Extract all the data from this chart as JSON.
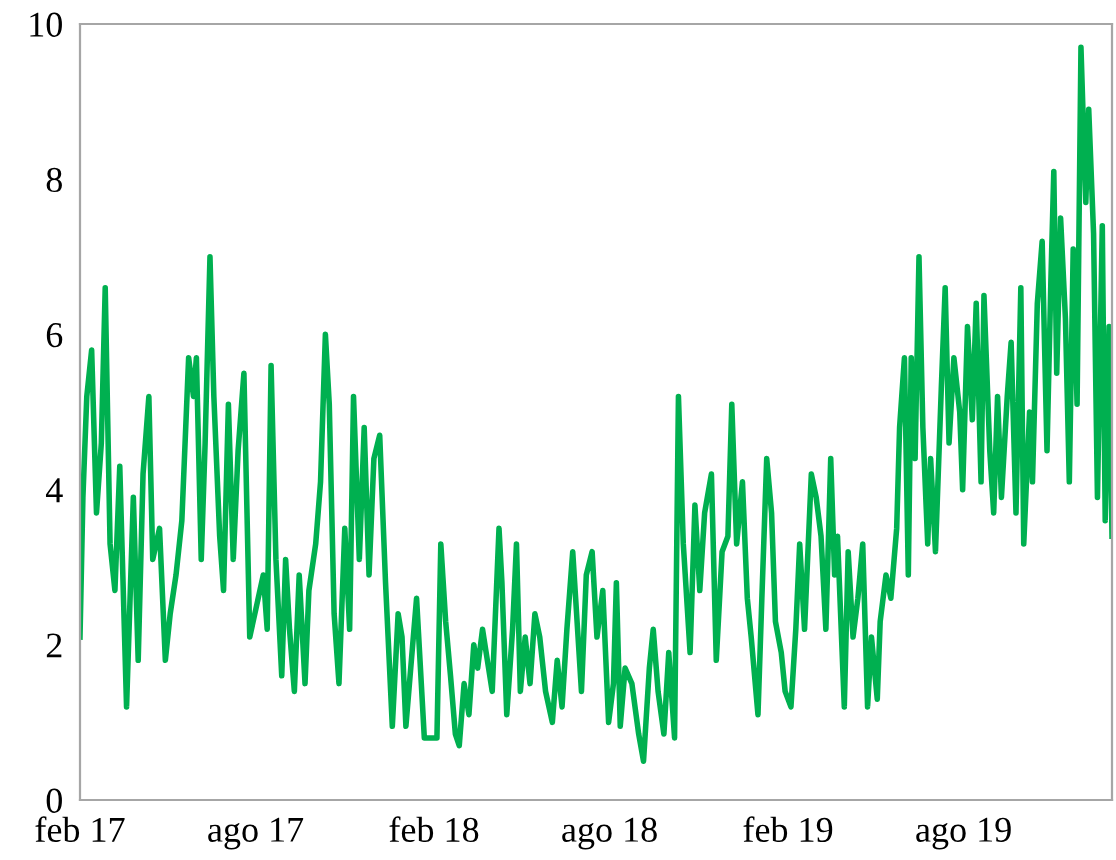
{
  "chart_data": {
    "type": "line",
    "x": [
      "2017-02-01",
      "2017-02-04",
      "2017-02-08",
      "2017-02-13",
      "2017-02-18",
      "2017-02-23",
      "2017-02-27",
      "2017-03-04",
      "2017-03-09",
      "2017-03-14",
      "2017-03-21",
      "2017-03-28",
      "2017-04-02",
      "2017-04-07",
      "2017-04-13",
      "2017-04-17",
      "2017-04-24",
      "2017-04-30",
      "2017-05-05",
      "2017-05-11",
      "2017-05-17",
      "2017-05-24",
      "2017-05-29",
      "2017-06-01",
      "2017-06-06",
      "2017-06-10",
      "2017-06-15",
      "2017-06-19",
      "2017-06-25",
      "2017-06-29",
      "2017-07-04",
      "2017-07-09",
      "2017-07-14",
      "2017-07-20",
      "2017-07-26",
      "2017-08-02",
      "2017-08-09",
      "2017-08-13",
      "2017-08-17",
      "2017-08-22",
      "2017-08-28",
      "2017-09-01",
      "2017-09-05",
      "2017-09-10",
      "2017-09-15",
      "2017-09-21",
      "2017-09-25",
      "2017-10-02",
      "2017-10-07",
      "2017-10-12",
      "2017-10-16",
      "2017-10-21",
      "2017-10-26",
      "2017-11-01",
      "2017-11-06",
      "2017-11-10",
      "2017-11-16",
      "2017-11-21",
      "2017-11-26",
      "2017-12-01",
      "2017-12-07",
      "2017-12-13",
      "2017-12-20",
      "2017-12-26",
      "2017-12-30",
      "2018-01-03",
      "2018-01-08",
      "2018-01-14",
      "2018-01-22",
      "2018-02-04",
      "2018-02-08",
      "2018-02-13",
      "2018-02-18",
      "2018-02-23",
      "2018-02-27",
      "2018-03-04",
      "2018-03-09",
      "2018-03-14",
      "2018-03-18",
      "2018-03-23",
      "2018-03-28",
      "2018-04-02",
      "2018-04-09",
      "2018-04-12",
      "2018-04-17",
      "2018-04-23",
      "2018-04-27",
      "2018-05-01",
      "2018-05-06",
      "2018-05-11",
      "2018-05-16",
      "2018-05-21",
      "2018-05-27",
      "2018-06-03",
      "2018-06-08",
      "2018-06-13",
      "2018-06-18",
      "2018-06-24",
      "2018-07-03",
      "2018-07-08",
      "2018-07-14",
      "2018-07-19",
      "2018-07-25",
      "2018-07-31",
      "2018-08-05",
      "2018-08-08",
      "2018-08-12",
      "2018-08-17",
      "2018-08-24",
      "2018-08-31",
      "2018-09-05",
      "2018-09-11",
      "2018-09-15",
      "2018-09-20",
      "2018-09-26",
      "2018-10-01",
      "2018-10-07",
      "2018-10-11",
      "2018-10-16",
      "2018-10-23",
      "2018-10-28",
      "2018-11-02",
      "2018-11-07",
      "2018-11-14",
      "2018-11-19",
      "2018-11-25",
      "2018-12-01",
      "2018-12-05",
      "2018-12-10",
      "2018-12-16",
      "2018-12-21",
      "2018-12-25",
      "2019-01-01",
      "2019-01-05",
      "2019-01-10",
      "2019-01-15",
      "2019-01-19",
      "2019-01-25",
      "2019-01-29",
      "2019-02-04",
      "2019-02-09",
      "2019-02-13",
      "2019-02-18",
      "2019-02-25",
      "2019-03-02",
      "2019-03-07",
      "2019-03-12",
      "2019-03-17",
      "2019-03-21",
      "2019-03-24",
      "2019-03-31",
      "2019-04-04",
      "2019-04-09",
      "2019-04-14",
      "2019-04-19",
      "2019-04-24",
      "2019-04-28",
      "2019-05-04",
      "2019-05-07",
      "2019-05-13",
      "2019-05-18",
      "2019-05-24",
      "2019-05-27",
      "2019-06-01",
      "2019-06-05",
      "2019-06-08",
      "2019-06-12",
      "2019-06-16",
      "2019-06-20",
      "2019-06-25",
      "2019-06-28",
      "2019-07-03",
      "2019-07-09",
      "2019-07-13",
      "2019-07-17",
      "2019-07-22",
      "2019-07-28",
      "2019-07-31",
      "2019-08-05",
      "2019-08-10",
      "2019-08-14",
      "2019-08-19",
      "2019-08-22",
      "2019-08-28",
      "2019-09-01",
      "2019-09-05",
      "2019-09-09",
      "2019-09-15",
      "2019-09-19",
      "2019-09-24",
      "2019-09-29",
      "2019-10-02",
      "2019-10-08",
      "2019-10-11",
      "2019-10-16",
      "2019-10-21",
      "2019-10-26",
      "2019-10-30",
      "2019-11-02",
      "2019-11-05",
      "2019-11-09",
      "2019-11-14",
      "2019-11-18",
      "2019-11-22",
      "2019-11-26",
      "2019-11-30",
      "2019-12-05",
      "2019-12-08",
      "2019-12-13",
      "2019-12-17",
      "2019-12-22",
      "2019-12-25",
      "2019-12-29",
      "2020-01-01"
    ],
    "series": [
      {
        "color": "#00b050",
        "values": [
          2.1,
          3.9,
          5.2,
          5.8,
          3.7,
          4.6,
          6.6,
          3.3,
          2.7,
          4.3,
          1.2,
          3.9,
          1.8,
          4.2,
          5.2,
          3.1,
          3.5,
          1.8,
          2.4,
          2.9,
          3.6,
          5.7,
          5.2,
          5.7,
          3.1,
          4.6,
          7.0,
          5.2,
          3.4,
          2.7,
          5.1,
          3.1,
          4.5,
          5.5,
          2.1,
          2.5,
          2.9,
          2.2,
          5.6,
          3.1,
          1.6,
          3.1,
          2.2,
          1.4,
          2.9,
          1.5,
          2.7,
          3.3,
          4.1,
          6.0,
          5.1,
          2.4,
          1.5,
          3.5,
          2.2,
          5.2,
          3.1,
          4.8,
          2.9,
          4.4,
          4.7,
          2.8,
          0.95,
          2.4,
          2.1,
          0.95,
          1.7,
          2.6,
          0.8,
          0.8,
          3.3,
          2.3,
          1.6,
          0.85,
          0.7,
          1.5,
          1.1,
          2.0,
          1.7,
          2.2,
          1.8,
          1.4,
          3.5,
          2.8,
          1.1,
          2.2,
          3.3,
          1.4,
          2.1,
          1.5,
          2.4,
          2.1,
          1.4,
          1.0,
          1.8,
          1.2,
          2.2,
          3.2,
          1.4,
          2.9,
          3.2,
          2.1,
          2.7,
          1.0,
          1.5,
          2.8,
          0.95,
          1.7,
          1.5,
          0.85,
          0.5,
          1.7,
          2.2,
          1.4,
          0.85,
          1.9,
          0.8,
          5.2,
          3.3,
          1.9,
          3.8,
          2.7,
          3.7,
          4.2,
          1.8,
          3.2,
          3.4,
          5.1,
          3.3,
          4.1,
          2.6,
          2.1,
          1.1,
          2.6,
          4.4,
          3.7,
          2.3,
          1.9,
          1.4,
          1.2,
          2.2,
          3.3,
          2.2,
          4.2,
          3.9,
          3.4,
          2.2,
          4.4,
          2.9,
          3.4,
          1.2,
          3.2,
          2.1,
          2.6,
          3.3,
          1.2,
          2.1,
          1.3,
          2.3,
          2.9,
          2.6,
          3.5,
          4.8,
          5.7,
          2.9,
          5.7,
          4.4,
          7.0,
          4.8,
          3.3,
          4.4,
          3.2,
          5.3,
          6.6,
          4.6,
          5.7,
          5.0,
          4.0,
          6.1,
          4.9,
          6.4,
          4.1,
          6.5,
          4.5,
          3.7,
          5.2,
          3.9,
          5.2,
          5.9,
          3.7,
          6.6,
          3.3,
          5.0,
          4.1,
          6.4,
          7.2,
          4.5,
          6.7,
          8.1,
          5.5,
          7.5,
          6.2,
          4.1,
          7.1,
          5.1,
          9.7,
          7.7,
          8.9,
          7.3,
          3.9,
          7.4,
          3.6,
          6.1,
          3.4
        ]
      }
    ],
    "xlim": [
      "2017-02-01",
      "2020-01-01"
    ],
    "xticks": [
      {
        "value": "2017-02-01",
        "label": "feb 17"
      },
      {
        "value": "2017-08-01",
        "label": "ago 17"
      },
      {
        "value": "2018-02-01",
        "label": "feb 18"
      },
      {
        "value": "2018-08-01",
        "label": "ago 18"
      },
      {
        "value": "2019-02-01",
        "label": "feb 19"
      },
      {
        "value": "2019-08-01",
        "label": "ago 19"
      }
    ],
    "ylim": [
      0,
      10
    ],
    "yticks": [
      0,
      2,
      4,
      6,
      8,
      10
    ],
    "grid": false,
    "marker": "none",
    "line_style": "solid"
  }
}
